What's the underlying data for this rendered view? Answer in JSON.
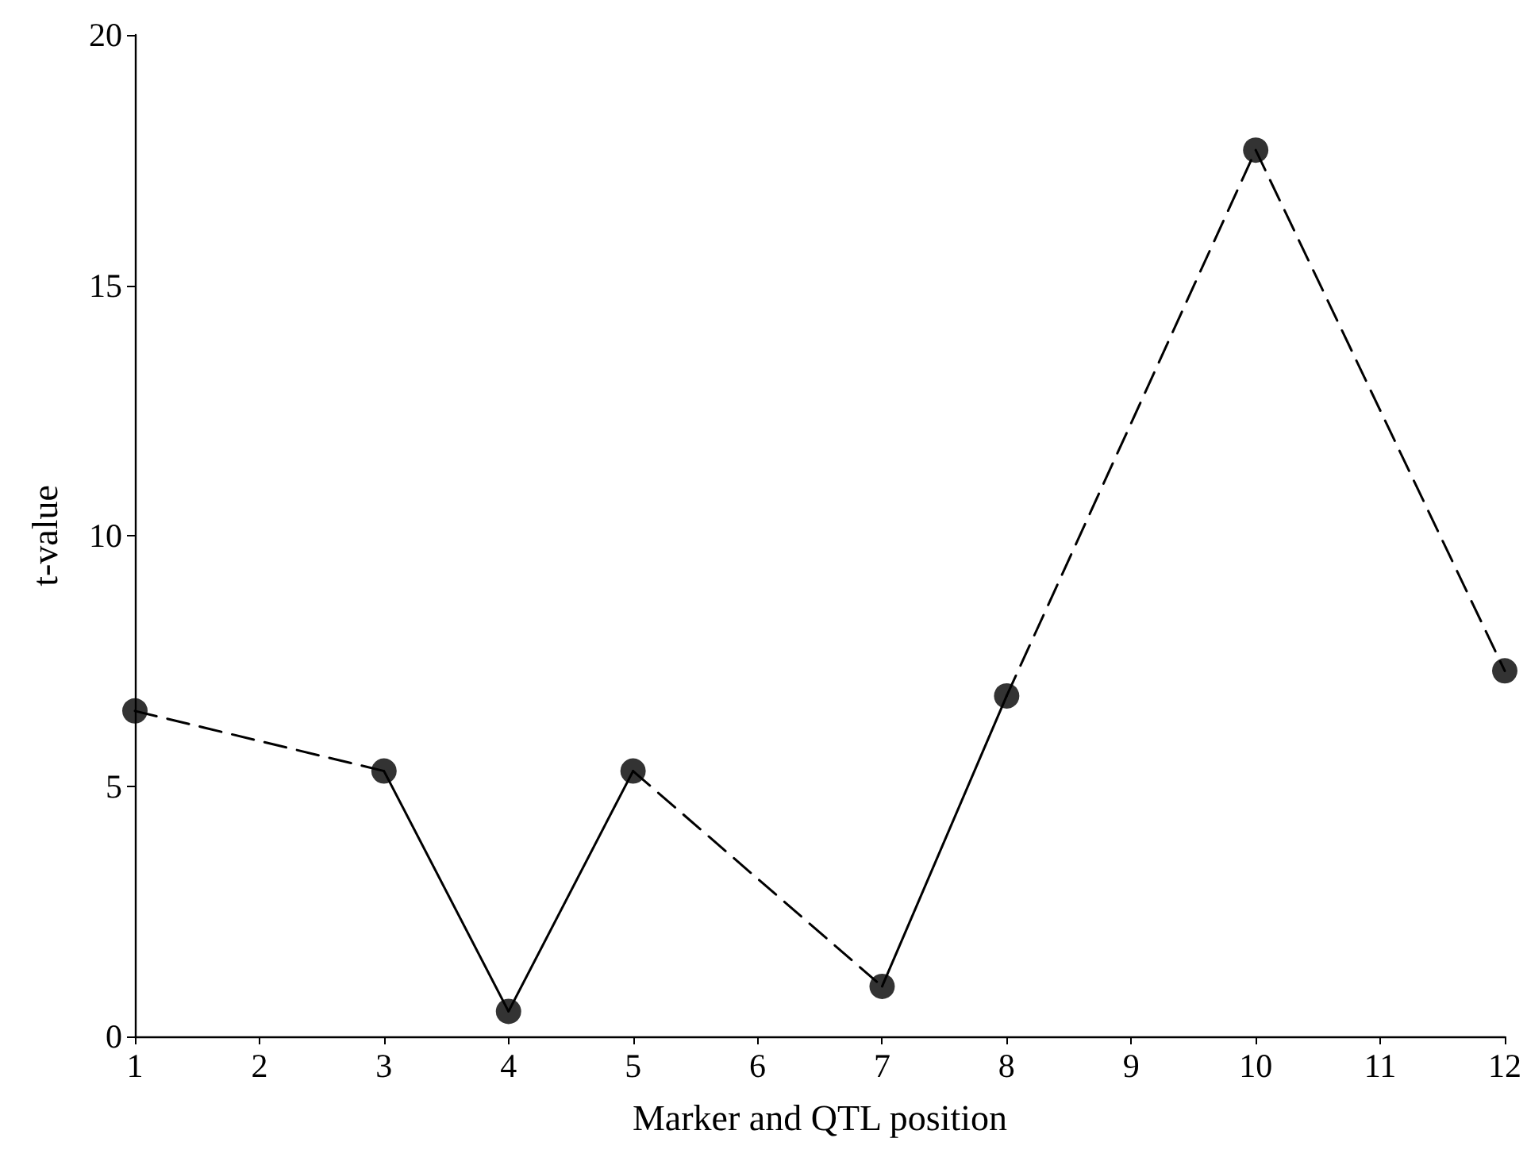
{
  "chart_data": {
    "type": "line",
    "xlabel": "Marker and QTL position",
    "ylabel": "t-value",
    "xlim": [
      1,
      12
    ],
    "xticks": [
      1,
      2,
      3,
      4,
      5,
      6,
      7,
      8,
      9,
      10,
      11,
      12
    ],
    "ylim": [
      0,
      20
    ],
    "yticks": [
      0,
      5,
      10,
      15,
      20
    ],
    "grid": false,
    "series": [
      {
        "type": "line",
        "color": "#000000",
        "line_style": "dashed",
        "marker": "none",
        "x": [
          1,
          3
        ],
        "values": [
          6.5,
          5.3
        ]
      },
      {
        "type": "line",
        "color": "#000000",
        "line_style": "solid",
        "marker": "none",
        "x": [
          3,
          4,
          5
        ],
        "values": [
          5.3,
          0.5,
          5.3
        ]
      },
      {
        "type": "line",
        "color": "#000000",
        "line_style": "dashed",
        "marker": "none",
        "x": [
          5,
          7
        ],
        "values": [
          5.3,
          1.0
        ]
      },
      {
        "type": "line",
        "color": "#000000",
        "line_style": "solid",
        "marker": "none",
        "x": [
          7,
          8
        ],
        "values": [
          1.0,
          6.8
        ]
      },
      {
        "type": "line",
        "color": "#000000",
        "line_style": "dashed",
        "marker": "none",
        "x": [
          8,
          10,
          12
        ],
        "values": [
          6.8,
          17.7,
          7.3
        ]
      },
      {
        "type": "scatter",
        "color": "#000000",
        "marker": "circle",
        "x": [
          1,
          3,
          4,
          5,
          7,
          8,
          10,
          12
        ],
        "values": [
          6.5,
          5.3,
          0.5,
          5.3,
          1.0,
          6.8,
          17.7,
          7.3
        ]
      }
    ]
  }
}
